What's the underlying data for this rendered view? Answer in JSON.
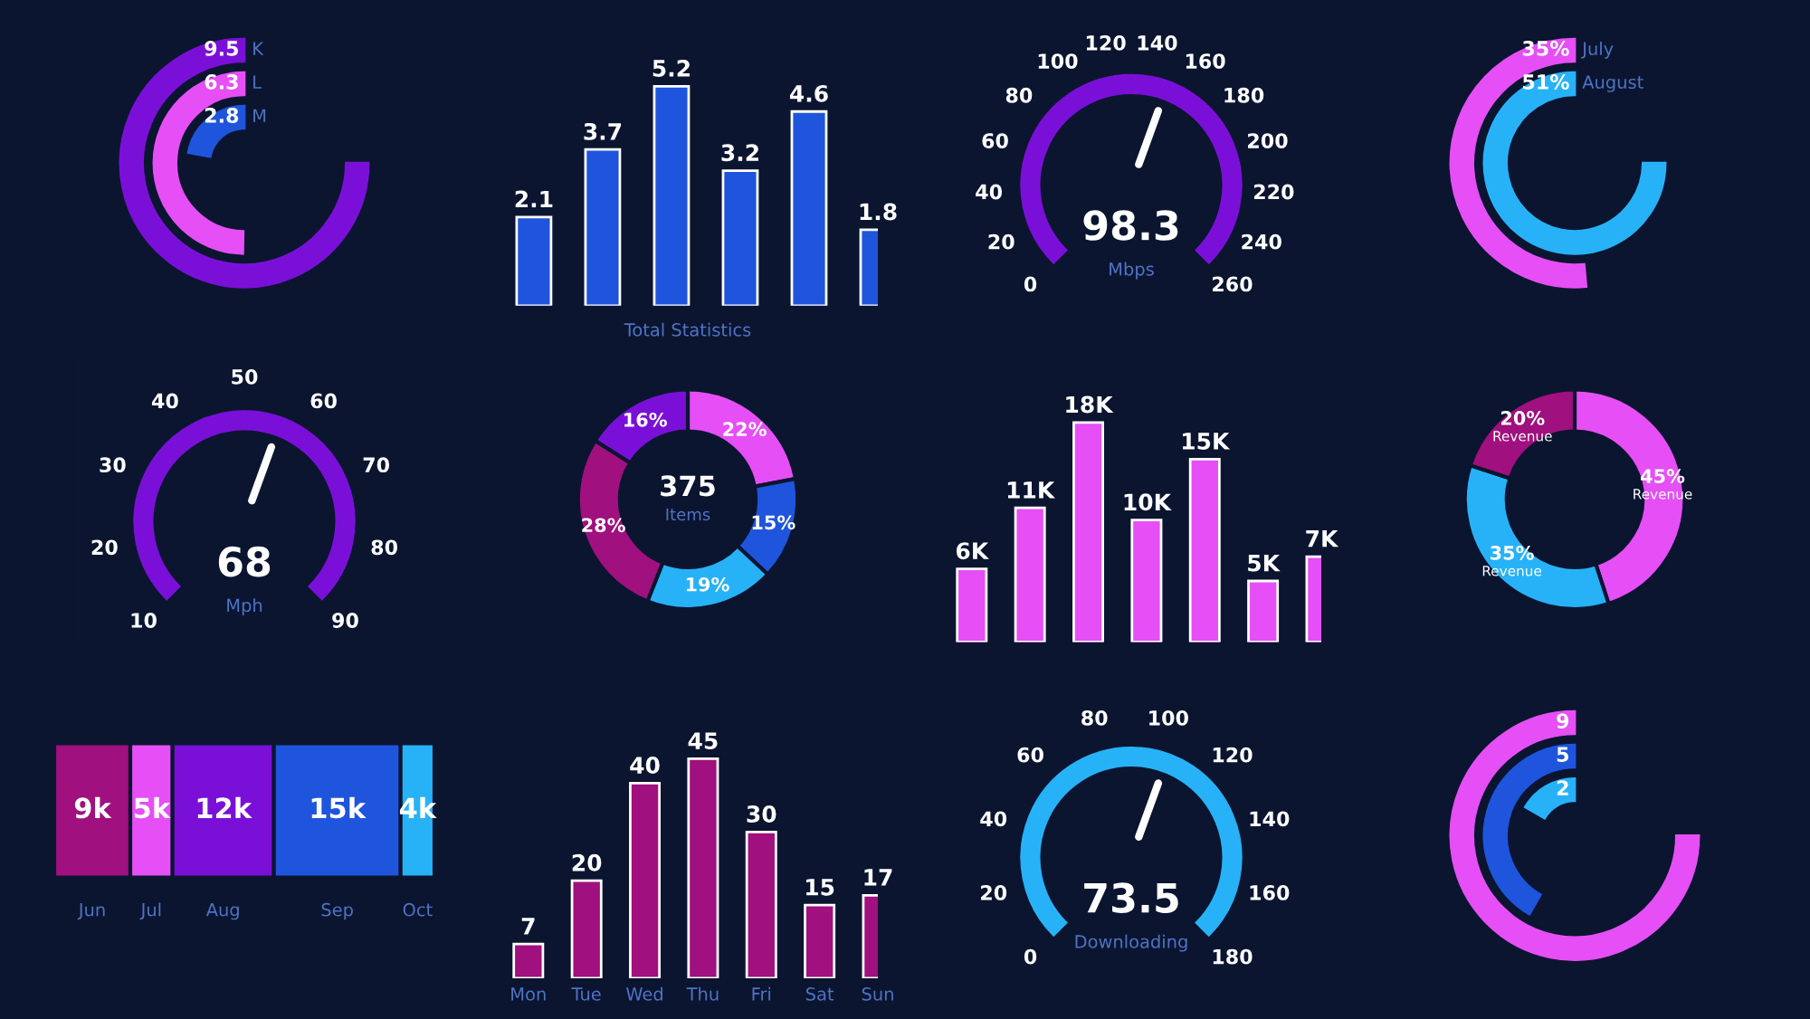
{
  "chart_data": [
    {
      "type": "other",
      "categories": [
        "K",
        "L",
        "M"
      ],
      "values": [
        9.5,
        6.3,
        2.8
      ],
      "colors": [
        "#7a10d8",
        "#e64ff5",
        "#1f55dd"
      ],
      "data_labels": true
    },
    {
      "type": "bar",
      "categories": [
        null,
        null,
        null,
        null,
        null,
        null
      ],
      "values": [
        2.1,
        3.7,
        5.2,
        3.2,
        4.6,
        1.8
      ],
      "color": "#1f55dd",
      "data_labels": true,
      "xlabel": "Total Statistics"
    },
    {
      "type": "other",
      "values": [
        98.3
      ],
      "annotations": [
        "0",
        "20",
        "40",
        "60",
        "80",
        "100",
        "120",
        "140",
        "160",
        "180",
        "200",
        "220",
        "240",
        "260"
      ],
      "colors": [
        "#7a10d8"
      ],
      "data_labels": true,
      "xlabel": "Mbps"
    },
    {
      "type": "other",
      "categories": [
        "July",
        "August"
      ],
      "values": [
        35,
        51
      ],
      "value_labels": [
        "35%",
        "51%"
      ],
      "colors": [
        "#e64ff5",
        "#27b2f8"
      ]
    },
    {
      "type": "other",
      "values": [
        68
      ],
      "annotations": [
        "10",
        "20",
        "30",
        "40",
        "50",
        "60",
        "70",
        "80",
        "90"
      ],
      "colors": [
        "#7a10d8"
      ],
      "data_labels": true,
      "xlabel": "Mph"
    },
    {
      "type": "donut",
      "categories": [
        null,
        null,
        null,
        null,
        null
      ],
      "values": [
        22,
        15,
        19,
        28,
        16
      ],
      "value_labels": [
        "22%",
        "15%",
        "19%",
        "28%",
        "16%"
      ],
      "colors": [
        "#e64ff5",
        "#1f55dd",
        "#27b2f8",
        "#a0107e",
        "#7a10d8"
      ],
      "annotations": [
        "375",
        "Items"
      ]
    },
    {
      "type": "bar",
      "categories": [
        null,
        null,
        null,
        null,
        null,
        null,
        null
      ],
      "values": [
        6,
        11,
        18,
        10,
        15,
        5,
        7
      ],
      "value_labels": [
        "6K",
        "11K",
        "18K",
        "10K",
        "15K",
        "5K",
        "7K"
      ],
      "color": "#e64ff5"
    },
    {
      "type": "donut",
      "categories": [
        "Revenue",
        "Revenue",
        "Revenue"
      ],
      "values": [
        45,
        35,
        20
      ],
      "value_labels": [
        "45%",
        "35%",
        "20%"
      ],
      "colors": [
        "#e64ff5",
        "#27b2f8",
        "#a0107e"
      ]
    },
    {
      "type": "bar",
      "stacked": true,
      "orientation": "horizontal",
      "categories": [
        null
      ],
      "series": [
        {
          "name": "Jun",
          "color": "#a0107e",
          "values": [
            9
          ],
          "value_labels": [
            "9k"
          ]
        },
        {
          "name": "Jul",
          "color": "#e64ff5",
          "values": [
            5
          ],
          "value_labels": [
            "5k"
          ]
        },
        {
          "name": "Aug",
          "color": "#7a10d8",
          "values": [
            12
          ],
          "value_labels": [
            "12k"
          ]
        },
        {
          "name": "Sep",
          "color": "#1f55dd",
          "values": [
            15
          ],
          "value_labels": [
            "15k"
          ]
        },
        {
          "name": "Oct",
          "color": "#27b2f8",
          "values": [
            4
          ],
          "value_labels": [
            "4k"
          ]
        }
      ]
    },
    {
      "type": "bar",
      "categories": [
        "Mon",
        "Tue",
        "Wed",
        "Thu",
        "Fri",
        "Sat",
        "Sun"
      ],
      "values": [
        7,
        20,
        40,
        45,
        30,
        15,
        17
      ],
      "color": "#a0107e",
      "data_labels": true
    },
    {
      "type": "other",
      "values": [
        73.5
      ],
      "annotations": [
        "0",
        "20",
        "40",
        "60",
        "80",
        "100",
        "120",
        "140",
        "160",
        "180"
      ],
      "colors": [
        "#27b2f8"
      ],
      "data_labels": true,
      "xlabel": "Downloading"
    },
    {
      "type": "other",
      "categories": [
        null,
        null,
        null
      ],
      "values": [
        9,
        5,
        2
      ],
      "colors": [
        "#e64ff5",
        "#1f55dd",
        "#27b2f8"
      ],
      "data_labels": true
    }
  ]
}
